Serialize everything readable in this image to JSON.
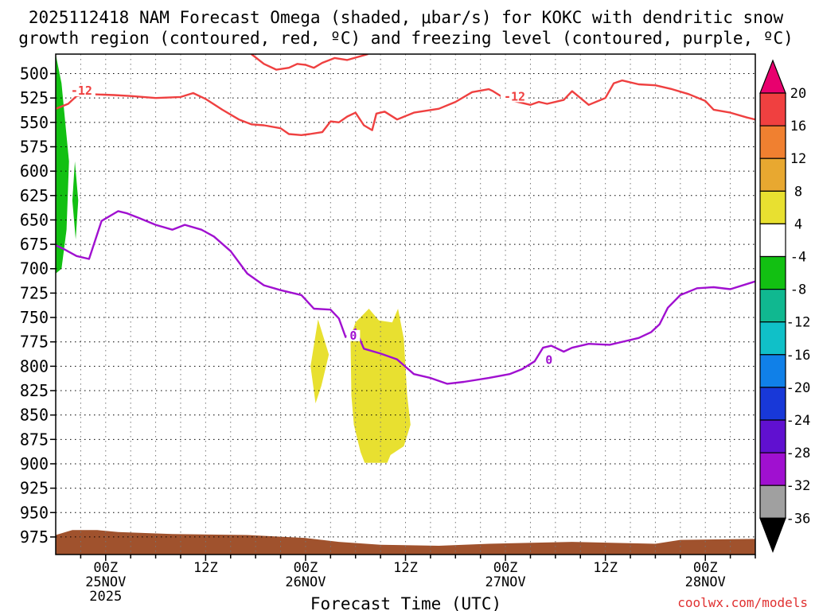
{
  "chart_data": {
    "type": "contour",
    "title_line1": "2025112418 NAM Forecast Omega (shaded, μbar/s) for KOKC with dendritic snow",
    "title_line2": "growth region (contoured, red, ºC) and freezing level (contoured, purple, ºC)",
    "xlabel": "Forecast Time (UTC)",
    "credit": "coolwx.com/models",
    "x_unit": "forecast hour",
    "xlim": [
      -6,
      78
    ],
    "x_ticks": [
      {
        "hour": 0,
        "label": "00Z",
        "sub1": "25NOV",
        "sub2": "2025"
      },
      {
        "hour": 12,
        "label": "12Z",
        "sub1": "",
        "sub2": ""
      },
      {
        "hour": 24,
        "label": "00Z",
        "sub1": "26NOV",
        "sub2": ""
      },
      {
        "hour": 36,
        "label": "12Z",
        "sub1": "",
        "sub2": ""
      },
      {
        "hour": 48,
        "label": "00Z",
        "sub1": "27NOV",
        "sub2": ""
      },
      {
        "hour": 60,
        "label": "12Z",
        "sub1": "",
        "sub2": ""
      },
      {
        "hour": 72,
        "label": "00Z",
        "sub1": "28NOV",
        "sub2": ""
      }
    ],
    "y_unit": "hPa",
    "ylim": [
      480,
      993
    ],
    "y_ticks": [
      500,
      525,
      550,
      575,
      600,
      625,
      650,
      675,
      700,
      725,
      750,
      775,
      800,
      825,
      850,
      875,
      900,
      925,
      950,
      975
    ],
    "colorbar": {
      "labels": [
        "20",
        "16",
        "12",
        "8",
        "4",
        "-4",
        "-8",
        "-12",
        "-16",
        "-20",
        "-24",
        "-28",
        "-32",
        "-36"
      ],
      "colors": [
        "#e8006e",
        "#f04040",
        "#f08030",
        "#e8a830",
        "#e8e030",
        "#ffffff",
        "#12c012",
        "#10b890",
        "#10c0c8",
        "#1080e8",
        "#1838d8",
        "#6010d0",
        "#a010d0",
        "#a0a0a0",
        "#000000"
      ]
    },
    "series": [
      {
        "name": "-12C isotherm (DGZ bottom)",
        "color": "#ef4040",
        "label": "-12",
        "label_positions": [
          [
            -4.2,
            520
          ],
          [
            47.8,
            526
          ]
        ],
        "points": [
          [
            -6,
            536
          ],
          [
            -4.5,
            531
          ],
          [
            -3.5,
            523
          ],
          [
            -2,
            521
          ],
          [
            1,
            522
          ],
          [
            3,
            523
          ],
          [
            6,
            525
          ],
          [
            9,
            524
          ],
          [
            10.5,
            520
          ],
          [
            12,
            526
          ],
          [
            14,
            537
          ],
          [
            16,
            547
          ],
          [
            17.5,
            552
          ],
          [
            19,
            553
          ],
          [
            21,
            556
          ],
          [
            22,
            562
          ],
          [
            23.5,
            563
          ],
          [
            24.5,
            562
          ],
          [
            26,
            560
          ],
          [
            27,
            549
          ],
          [
            28,
            550
          ],
          [
            29,
            544
          ],
          [
            30,
            540
          ],
          [
            31,
            553
          ],
          [
            32,
            558
          ],
          [
            32.5,
            541
          ],
          [
            33.5,
            539
          ],
          [
            35,
            547
          ],
          [
            37,
            540
          ],
          [
            40,
            536
          ],
          [
            42,
            529
          ],
          [
            44,
            519
          ],
          [
            46,
            516
          ],
          [
            46.5,
            518
          ],
          [
            48,
            526
          ],
          [
            49,
            528
          ],
          [
            51,
            532
          ],
          [
            52,
            529
          ],
          [
            53,
            531
          ],
          [
            55,
            527
          ],
          [
            56,
            518
          ],
          [
            58,
            532
          ],
          [
            60,
            525
          ],
          [
            61,
            510
          ],
          [
            62,
            507
          ],
          [
            64,
            511
          ],
          [
            66,
            512
          ],
          [
            68,
            516
          ],
          [
            70,
            521
          ],
          [
            72,
            528
          ],
          [
            73,
            537
          ],
          [
            75,
            540
          ],
          [
            77,
            545
          ],
          [
            78,
            547
          ]
        ]
      },
      {
        "name": "-12C isotherm (DGZ top)",
        "color": "#ef4040",
        "label": "",
        "label_positions": [],
        "points": [
          [
            17.5,
            480
          ],
          [
            19,
            490
          ],
          [
            20.5,
            496
          ],
          [
            22,
            494
          ],
          [
            23,
            490
          ],
          [
            24,
            491
          ],
          [
            25,
            494
          ],
          [
            26,
            489
          ],
          [
            27.5,
            484
          ],
          [
            29,
            486
          ],
          [
            31.5,
            480
          ]
        ]
      },
      {
        "name": "0C isotherm (freezing level)",
        "color": "#a010d0",
        "label": "0",
        "label_positions": [
          [
            29.3,
            771
          ],
          [
            52.8,
            796
          ]
        ],
        "points": [
          [
            -6,
            676
          ],
          [
            -5,
            680
          ],
          [
            -3.5,
            687
          ],
          [
            -2,
            690
          ],
          [
            -0.5,
            651
          ],
          [
            1.5,
            641
          ],
          [
            2.5,
            643
          ],
          [
            4,
            648
          ],
          [
            6,
            655
          ],
          [
            8,
            660
          ],
          [
            9.5,
            655
          ],
          [
            11.5,
            660
          ],
          [
            13,
            667
          ],
          [
            15,
            682
          ],
          [
            17,
            705
          ],
          [
            19,
            717
          ],
          [
            21,
            722
          ],
          [
            23.5,
            727
          ],
          [
            25,
            741
          ],
          [
            27,
            742
          ],
          [
            28,
            751
          ],
          [
            28.8,
            770
          ],
          [
            30,
            762
          ],
          [
            31,
            782
          ],
          [
            33,
            787
          ],
          [
            35,
            793
          ],
          [
            37,
            808
          ],
          [
            39,
            812
          ],
          [
            41,
            818
          ],
          [
            43,
            816
          ],
          [
            46,
            812
          ],
          [
            48.5,
            808
          ],
          [
            50,
            803
          ],
          [
            51.5,
            795
          ],
          [
            52.5,
            781
          ],
          [
            53.5,
            779
          ],
          [
            55,
            785
          ],
          [
            56,
            781
          ],
          [
            58,
            777
          ],
          [
            60.5,
            778
          ],
          [
            62.5,
            774
          ],
          [
            64,
            771
          ],
          [
            65.5,
            765
          ],
          [
            66.5,
            757
          ],
          [
            67.5,
            740
          ],
          [
            69,
            727
          ],
          [
            71,
            720
          ],
          [
            73,
            719
          ],
          [
            75,
            721
          ],
          [
            78,
            713
          ]
        ]
      }
    ],
    "filled_regions": [
      {
        "name": "omega -4 to -8 (green)",
        "color": "#12c012",
        "points": [
          [
            -6,
            480
          ],
          [
            -5.3,
            510
          ],
          [
            -4.4,
            590
          ],
          [
            -4.7,
            660
          ],
          [
            -5.3,
            700
          ],
          [
            -6,
            705
          ]
        ]
      },
      {
        "name": "omega -4 to -8 (green, narrow)",
        "color": "#12c012",
        "points": [
          [
            -3.7,
            590
          ],
          [
            -3.3,
            630
          ],
          [
            -3.6,
            670
          ],
          [
            -4.0,
            630
          ]
        ]
      },
      {
        "name": "omega 4 to 8 (yellow)",
        "color": "#e8e030",
        "points": [
          [
            25.5,
            752
          ],
          [
            26.8,
            788
          ],
          [
            25.9,
            820
          ],
          [
            25.2,
            838
          ],
          [
            24.6,
            800
          ]
        ]
      },
      {
        "name": "omega 4 to 8 (yellow, large)",
        "color": "#e8e030",
        "points": [
          [
            30,
            755
          ],
          [
            31.6,
            741
          ],
          [
            32.8,
            753
          ],
          [
            34.4,
            755
          ],
          [
            35.1,
            741
          ],
          [
            35.8,
            772
          ],
          [
            36.2,
            830
          ],
          [
            36.6,
            860
          ],
          [
            35.8,
            882
          ],
          [
            34.2,
            891
          ],
          [
            33.8,
            899
          ],
          [
            31.1,
            899
          ],
          [
            30.6,
            888
          ],
          [
            29.8,
            860
          ],
          [
            29.5,
            830
          ],
          [
            29.4,
            770
          ]
        ]
      }
    ],
    "terrain": {
      "name": "ground surface",
      "color": "#a0522d",
      "points": [
        [
          -6,
          973
        ],
        [
          -4,
          968
        ],
        [
          -1,
          968
        ],
        [
          1.5,
          970
        ],
        [
          8,
          972
        ],
        [
          17,
          973
        ],
        [
          24,
          976
        ],
        [
          28,
          980
        ],
        [
          33,
          983
        ],
        [
          40,
          984
        ],
        [
          46,
          982
        ],
        [
          56,
          980
        ],
        [
          66,
          982
        ],
        [
          69,
          978
        ],
        [
          78,
          977
        ]
      ]
    }
  }
}
